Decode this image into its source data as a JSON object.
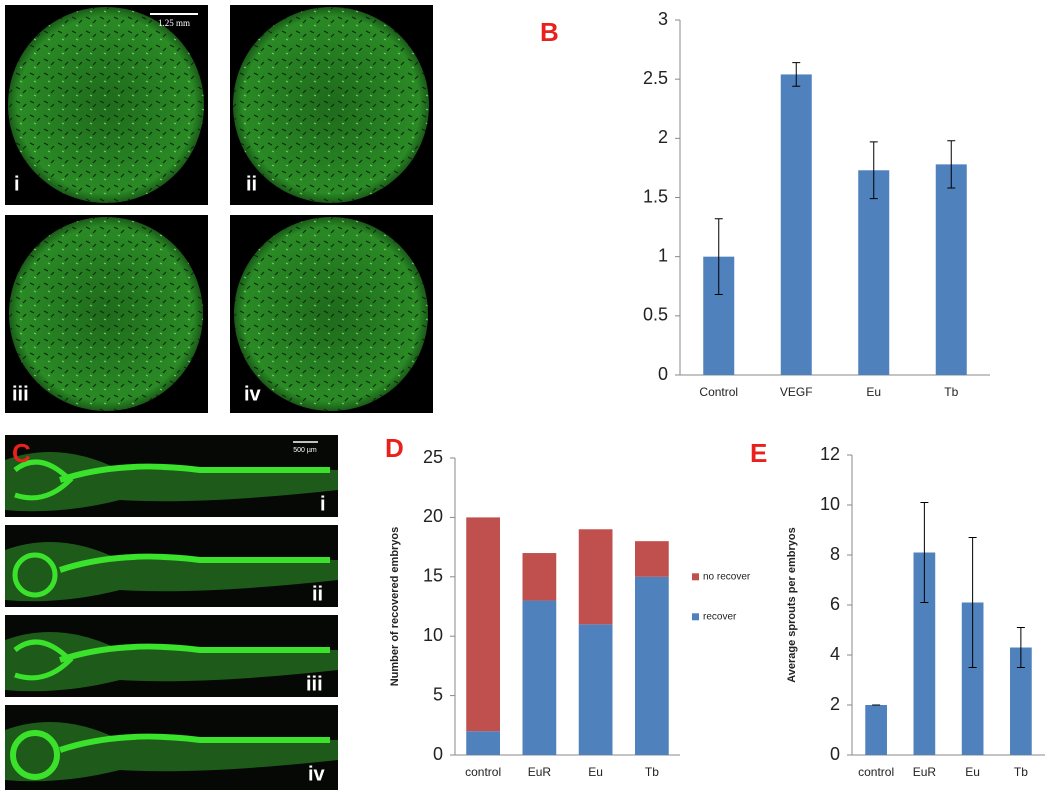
{
  "micrographs": {
    "scale_bar": "1.25 mm",
    "labels": [
      "i",
      "ii",
      "iii",
      "iv"
    ]
  },
  "embryos": {
    "panel": "C",
    "scale_bar": "500 µm",
    "labels": [
      "i",
      "ii",
      "iii",
      "iv"
    ]
  },
  "chart_data": [
    {
      "type": "bar",
      "panel": "B",
      "categories": [
        "Control",
        "VEGF",
        "Eu",
        "Tb"
      ],
      "values": [
        1,
        2.54,
        1.73,
        1.78
      ],
      "errors": [
        0.32,
        0.1,
        0.24,
        0.2
      ],
      "color": "#4f81bd",
      "ylim": [
        0,
        3
      ],
      "yticks": [
        0,
        0.5,
        1,
        1.5,
        2,
        2.5,
        3
      ]
    },
    {
      "type": "bar",
      "panel": "D",
      "stacked": true,
      "ylabel": "Number of recovered embryos",
      "categories": [
        "control",
        "EuR",
        "Eu",
        "Tb"
      ],
      "series": [
        {
          "name": "recover",
          "color": "#4f81bd",
          "values": [
            2,
            13,
            11,
            15
          ]
        },
        {
          "name": "no recover",
          "color": "#c0504d",
          "values": [
            18,
            4,
            8,
            3
          ]
        }
      ],
      "legend": "right",
      "ylim": [
        0,
        25
      ],
      "yticks": [
        0,
        5,
        10,
        15,
        20,
        25
      ]
    },
    {
      "type": "bar",
      "panel": "E",
      "ylabel": "Average sprouts per embryos",
      "categories": [
        "control",
        "EuR",
        "Eu",
        "Tb"
      ],
      "values": [
        2,
        8.1,
        6.1,
        4.3
      ],
      "errors": [
        0,
        2.0,
        2.6,
        0.8
      ],
      "color": "#4f81bd",
      "ylim": [
        0,
        12
      ],
      "yticks": [
        0,
        2,
        4,
        6,
        8,
        10,
        12
      ]
    }
  ]
}
